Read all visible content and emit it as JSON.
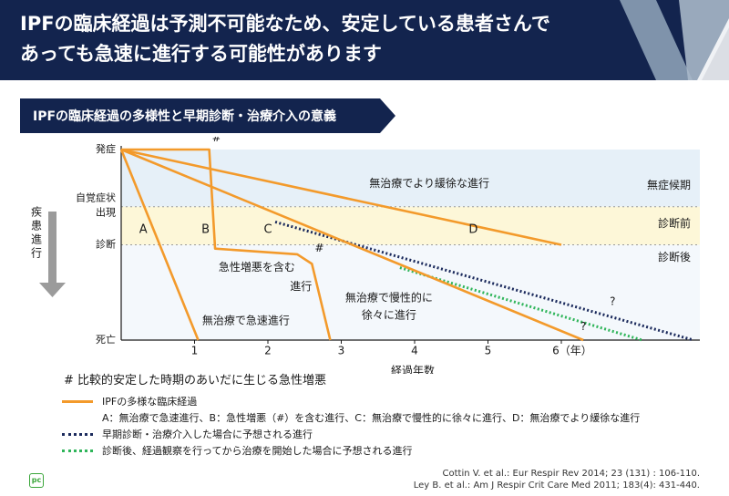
{
  "header": {
    "title_line1": "IPFの臨床経過は予測不可能なため、安定している患者さんで",
    "title_line2": "あっても急速に進行する可能性があります"
  },
  "section": {
    "title": "IPFの臨床経過の多様性と早期診断・治療介入の意義"
  },
  "colors": {
    "header_bg": "#13244e",
    "orange": "#f39a2b",
    "navy_dotted": "#1b2a5c",
    "green_dotted": "#2fb55a",
    "band_asymptomatic": "#e6f0f8",
    "band_prediagnosis": "#fdf7d8",
    "band_postdiagnosis": "#f4f8fc"
  },
  "chart_data": {
    "type": "line",
    "xlabel": "経過年数",
    "x_ticks": [
      "1",
      "2",
      "3",
      "4",
      "5",
      "6（年）"
    ],
    "xlim": [
      0,
      7.8
    ],
    "y_levels": [
      "発症",
      "自覚症状出現",
      "診断",
      "死亡"
    ],
    "y_axis_label": "疾患進行",
    "bands": [
      "無症候期",
      "診断前",
      "診断後"
    ],
    "series": [
      {
        "name": "A",
        "label": "無治療で急速進行",
        "style": "solid-orange",
        "x": [
          0,
          1.05
        ],
        "y": [
          0,
          1
        ]
      },
      {
        "name": "B",
        "label": "急性増悪を含む進行",
        "style": "solid-orange",
        "x": [
          0,
          1.2,
          1.28,
          2.4,
          2.6,
          2.85
        ],
        "y": [
          0,
          0,
          0.52,
          0.55,
          0.6,
          1
        ]
      },
      {
        "name": "C",
        "label": "無治療で慢性的に徐々に進行",
        "style": "solid-orange",
        "x": [
          0,
          6.3
        ],
        "y": [
          0,
          1
        ]
      },
      {
        "name": "D",
        "label": "無治療でより緩徐な進行",
        "style": "solid-orange",
        "x": [
          0,
          6
        ],
        "y": [
          0,
          0.5
        ]
      },
      {
        "name": "early",
        "label": "早期診断・治療介入した場合に予想される進行",
        "style": "dotted-navy",
        "x": [
          2.1,
          7.8
        ],
        "y": [
          0.38,
          1
        ]
      },
      {
        "name": "after_observation",
        "label": "診断後、経過観察を行ってから治療を開始した場合に予想される進行",
        "style": "dotted-green",
        "x": [
          3.8,
          7.1
        ],
        "y": [
          0.62,
          1
        ]
      }
    ],
    "annotations": [
      {
        "text": "無治療でより緩徐な進行",
        "x": 4.2,
        "y": 0.18
      },
      {
        "text": "#",
        "x": 1.3,
        "y": -0.06
      },
      {
        "text": "#",
        "x": 2.7,
        "y": 0.52
      },
      {
        "text": "急性増悪を含む",
        "x": 1.85,
        "y": 0.62
      },
      {
        "text": "進行",
        "x": 2.45,
        "y": 0.72
      },
      {
        "text": "無治療で急速進行",
        "x": 1.7,
        "y": 0.9
      },
      {
        "text": "無治療で慢性的に",
        "x": 3.65,
        "y": 0.78
      },
      {
        "text": "徐々に進行",
        "x": 3.65,
        "y": 0.87
      },
      {
        "text": "?",
        "x": 6.7,
        "y": 0.8
      },
      {
        "text": "?",
        "x": 6.3,
        "y": 0.93
      }
    ],
    "point_labels": [
      {
        "text": "A",
        "x": 0.3,
        "y": 0.42
      },
      {
        "text": "B",
        "x": 1.15,
        "y": 0.42
      },
      {
        "text": "C",
        "x": 2.0,
        "y": 0.42
      },
      {
        "text": "D",
        "x": 4.8,
        "y": 0.42
      }
    ]
  },
  "note": "# 比較的安定した時期のあいだに生じる急性増悪",
  "legend": {
    "orange": "IPFの多様な臨床経過",
    "orange_detail": "A：無治療で急速進行、B：急性増悪（#）を含む進行、C：無治療で慢性的に徐々に進行、D：無治療でより緩徐な進行",
    "navy": "早期診断・治療介入した場合に予想される進行",
    "green": "診断後、経過観察を行ってから治療を開始した場合に予想される進行"
  },
  "references": {
    "line1": "Cottin V. et al.: Eur Respir Rev 2014; 23 (131) : 106-110.",
    "line2": "Ley B. et al.: Am J Respir Crit Care Med 2011; 183(4): 431-440."
  },
  "logo_text": "pc"
}
